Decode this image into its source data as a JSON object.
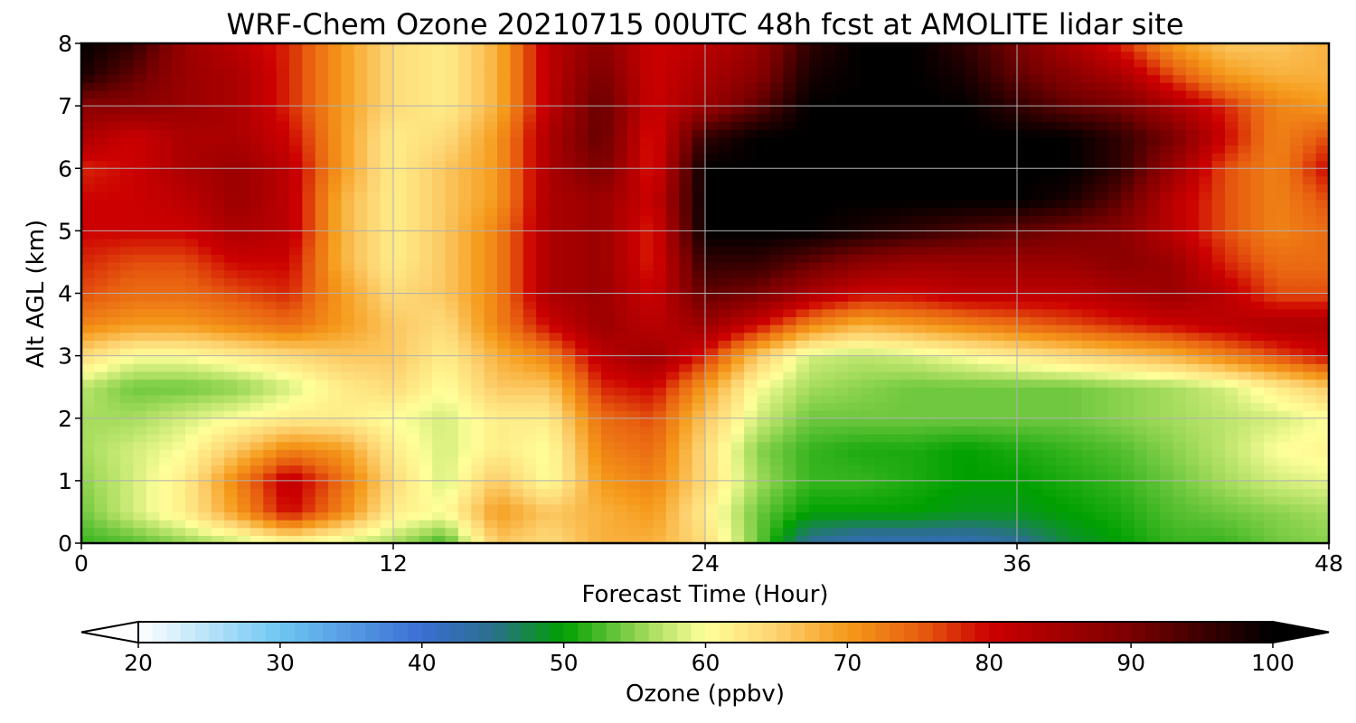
{
  "chart_data": {
    "type": "heatmap",
    "title": "WRF-Chem Ozone  20210715 00UTC 48h fcst at AMOLITE lidar site",
    "xlabel": "Forecast Time (Hour)",
    "ylabel": "Alt AGL (km)",
    "xlim": [
      0,
      48
    ],
    "ylim": [
      0,
      8
    ],
    "xticks": [
      0,
      12,
      24,
      36,
      48
    ],
    "yticks": [
      0,
      1,
      2,
      3,
      4,
      5,
      6,
      7,
      8
    ],
    "grid": true,
    "x": [
      0,
      2,
      4,
      6,
      8,
      10,
      12,
      14,
      16,
      18,
      20,
      22,
      24,
      26,
      28,
      30,
      32,
      34,
      36,
      38,
      40,
      42,
      44,
      46,
      48
    ],
    "y": [
      0,
      0.5,
      1,
      1.5,
      2,
      2.5,
      3,
      3.5,
      4,
      4.5,
      5,
      5.5,
      6,
      6.5,
      7,
      7.5,
      8
    ],
    "z": [
      [
        52,
        53,
        55,
        57,
        60,
        58,
        56,
        52,
        66,
        64,
        68,
        68,
        64,
        54,
        44,
        42,
        42,
        42,
        44,
        48,
        50,
        52,
        52,
        54,
        55
      ],
      [
        54,
        58,
        62,
        70,
        80,
        72,
        62,
        60,
        70,
        66,
        68,
        70,
        62,
        54,
        50,
        50,
        50,
        49,
        49,
        50,
        51,
        53,
        54,
        55,
        56
      ],
      [
        55,
        58,
        62,
        72,
        82,
        74,
        64,
        58,
        66,
        60,
        70,
        72,
        64,
        56,
        52,
        52,
        51,
        50,
        50,
        51,
        52,
        54,
        56,
        58,
        59
      ],
      [
        56,
        58,
        60,
        66,
        72,
        70,
        62,
        58,
        62,
        60,
        72,
        74,
        64,
        55,
        52,
        51,
        51,
        50,
        51,
        52,
        53,
        55,
        57,
        60,
        61
      ],
      [
        56,
        56,
        58,
        60,
        62,
        62,
        60,
        58,
        62,
        62,
        74,
        76,
        66,
        58,
        54,
        54,
        54,
        54,
        54,
        54,
        55,
        56,
        57,
        58,
        60
      ],
      [
        57,
        54,
        54,
        55,
        58,
        62,
        64,
        60,
        66,
        66,
        78,
        80,
        70,
        60,
        56,
        55,
        54,
        54,
        54,
        54,
        55,
        56,
        58,
        62,
        66
      ],
      [
        64,
        60,
        60,
        62,
        64,
        66,
        66,
        62,
        68,
        72,
        82,
        86,
        78,
        66,
        58,
        57,
        58,
        60,
        62,
        64,
        66,
        68,
        72,
        76,
        80
      ],
      [
        72,
        70,
        70,
        72,
        74,
        70,
        66,
        64,
        72,
        80,
        86,
        82,
        86,
        80,
        72,
        68,
        70,
        72,
        74,
        76,
        78,
        80,
        82,
        84,
        84
      ],
      [
        76,
        74,
        74,
        76,
        78,
        70,
        64,
        66,
        72,
        84,
        86,
        80,
        92,
        90,
        84,
        80,
        80,
        82,
        82,
        82,
        84,
        86,
        82,
        76,
        76
      ],
      [
        78,
        76,
        76,
        80,
        80,
        68,
        62,
        66,
        72,
        84,
        86,
        78,
        96,
        96,
        92,
        88,
        86,
        86,
        86,
        86,
        88,
        86,
        78,
        74,
        74
      ],
      [
        80,
        80,
        80,
        84,
        82,
        68,
        62,
        66,
        72,
        84,
        86,
        78,
        100,
        100,
        100,
        98,
        96,
        94,
        92,
        90,
        88,
        82,
        76,
        72,
        74
      ],
      [
        80,
        80,
        82,
        86,
        82,
        68,
        62,
        66,
        70,
        84,
        86,
        80,
        100,
        100,
        100,
        100,
        100,
        100,
        100,
        98,
        92,
        82,
        76,
        72,
        76
      ],
      [
        78,
        80,
        84,
        86,
        82,
        70,
        62,
        66,
        70,
        84,
        90,
        78,
        100,
        100,
        100,
        100,
        100,
        100,
        100,
        100,
        96,
        86,
        76,
        72,
        80
      ],
      [
        84,
        80,
        84,
        84,
        80,
        70,
        62,
        64,
        70,
        84,
        92,
        78,
        96,
        100,
        100,
        100,
        100,
        100,
        100,
        100,
        96,
        90,
        80,
        72,
        76
      ],
      [
        88,
        88,
        86,
        84,
        78,
        70,
        64,
        62,
        68,
        82,
        92,
        80,
        86,
        92,
        100,
        100,
        100,
        100,
        96,
        92,
        90,
        84,
        78,
        72,
        70
      ],
      [
        98,
        92,
        86,
        84,
        78,
        70,
        64,
        62,
        68,
        82,
        90,
        80,
        84,
        88,
        98,
        100,
        100,
        98,
        92,
        88,
        84,
        76,
        70,
        68,
        68
      ],
      [
        100,
        96,
        86,
        82,
        78,
        70,
        64,
        62,
        68,
        82,
        88,
        80,
        82,
        86,
        96,
        100,
        100,
        96,
        90,
        84,
        78,
        70,
        66,
        66,
        68
      ]
    ],
    "colorbar": {
      "label": "Ozone  (ppbv)",
      "min": 20,
      "max": 100,
      "ticks": [
        20,
        30,
        40,
        50,
        60,
        70,
        80,
        90,
        100
      ],
      "extend": "both",
      "stops": [
        {
          "v": 20,
          "c": "#ffffff"
        },
        {
          "v": 30,
          "c": "#6ec6f2"
        },
        {
          "v": 40,
          "c": "#3b6ed3"
        },
        {
          "v": 45,
          "c": "#2a6f8c"
        },
        {
          "v": 50,
          "c": "#00a000"
        },
        {
          "v": 56,
          "c": "#a6dc5e"
        },
        {
          "v": 60,
          "c": "#ffff9a"
        },
        {
          "v": 65,
          "c": "#fdd270"
        },
        {
          "v": 70,
          "c": "#f59a1a"
        },
        {
          "v": 75,
          "c": "#e86010"
        },
        {
          "v": 80,
          "c": "#cc0000"
        },
        {
          "v": 90,
          "c": "#7a0000"
        },
        {
          "v": 100,
          "c": "#000000"
        }
      ]
    }
  }
}
